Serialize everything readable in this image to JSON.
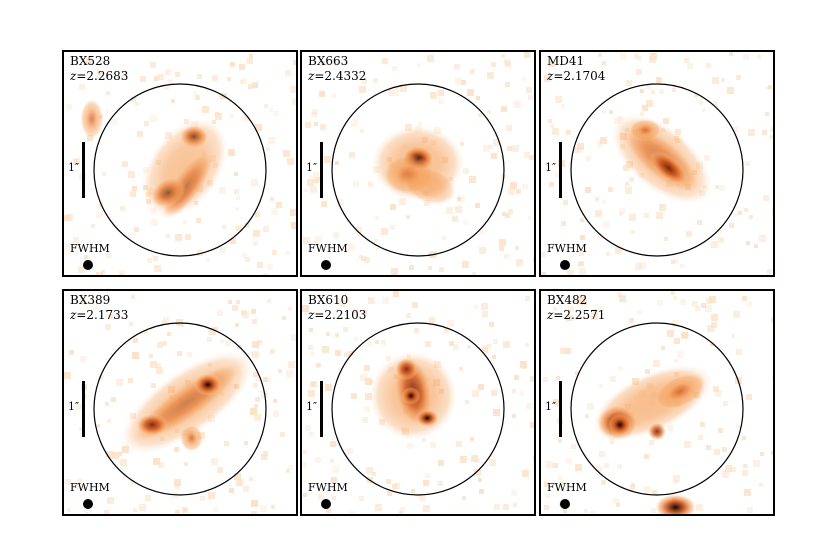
{
  "panels": [
    {
      "name": "BX528",
      "z_label": "z",
      "z_value": "=2.2683",
      "scale": "1″",
      "fwhm": "FWHM",
      "blobs": [
        [
          0.53,
          0.6,
          0.17,
          0.06,
          -55,
          0.75
        ],
        [
          0.45,
          0.63,
          0.08,
          0.06,
          -30,
          1.0
        ],
        [
          0.56,
          0.38,
          0.06,
          0.05,
          0,
          0.95
        ],
        [
          0.12,
          0.3,
          0.05,
          0.09,
          0,
          0.45
        ],
        [
          0.52,
          0.52,
          0.24,
          0.16,
          -55,
          0.25
        ]
      ]
    },
    {
      "name": "BX663",
      "z_label": "z",
      "z_value": "=2.4332",
      "scale": "1″",
      "fwhm": "FWHM",
      "blobs": [
        [
          0.5,
          0.5,
          0.2,
          0.17,
          0,
          0.35
        ],
        [
          0.5,
          0.48,
          0.07,
          0.06,
          0,
          1.0
        ],
        [
          0.46,
          0.55,
          0.11,
          0.09,
          0,
          0.55
        ],
        [
          0.55,
          0.6,
          0.12,
          0.08,
          20,
          0.3
        ]
      ]
    },
    {
      "name": "MD41",
      "z_label": "z",
      "z_value": "=2.1704",
      "scale": "1″",
      "fwhm": "FWHM",
      "blobs": [
        [
          0.52,
          0.48,
          0.2,
          0.08,
          40,
          0.65
        ],
        [
          0.52,
          0.48,
          0.26,
          0.14,
          40,
          0.25
        ],
        [
          0.55,
          0.52,
          0.1,
          0.05,
          40,
          0.85
        ],
        [
          0.45,
          0.35,
          0.07,
          0.05,
          0,
          0.55
        ]
      ]
    },
    {
      "name": "BX389",
      "z_label": "z",
      "z_value": "=2.1733",
      "scale": "1″",
      "fwhm": "FWHM",
      "blobs": [
        [
          0.53,
          0.5,
          0.28,
          0.07,
          -35,
          0.7
        ],
        [
          0.53,
          0.5,
          0.34,
          0.14,
          -35,
          0.25
        ],
        [
          0.62,
          0.42,
          0.06,
          0.05,
          0,
          0.95
        ],
        [
          0.38,
          0.6,
          0.07,
          0.05,
          0,
          0.75
        ],
        [
          0.55,
          0.66,
          0.05,
          0.06,
          0,
          0.55
        ]
      ]
    },
    {
      "name": "BX610",
      "z_label": "z",
      "z_value": "=2.2103",
      "scale": "1″",
      "fwhm": "FWHM",
      "blobs": [
        [
          0.48,
          0.47,
          0.19,
          0.2,
          0,
          0.35
        ],
        [
          0.48,
          0.45,
          0.08,
          0.16,
          -10,
          0.7
        ],
        [
          0.47,
          0.47,
          0.04,
          0.04,
          0,
          1.0
        ],
        [
          0.54,
          0.57,
          0.05,
          0.04,
          0,
          0.95
        ],
        [
          0.45,
          0.35,
          0.05,
          0.05,
          0,
          0.7
        ]
      ]
    },
    {
      "name": "BX482",
      "z_label": "z",
      "z_value": "=2.2571",
      "scale": "1″",
      "fwhm": "FWHM",
      "blobs": [
        [
          0.48,
          0.5,
          0.28,
          0.13,
          -25,
          0.4
        ],
        [
          0.33,
          0.59,
          0.09,
          0.08,
          0,
          0.85
        ],
        [
          0.34,
          0.6,
          0.05,
          0.05,
          0,
          1.0
        ],
        [
          0.5,
          0.63,
          0.04,
          0.04,
          0,
          0.7
        ],
        [
          0.6,
          0.45,
          0.12,
          0.07,
          -25,
          0.55
        ],
        [
          0.58,
          0.97,
          0.09,
          0.06,
          0,
          0.95
        ]
      ]
    }
  ],
  "colors": {
    "colormap": [
      "#ffffff",
      "#fbe0c4",
      "#f5a35f",
      "#d0561a",
      "#6e1d05",
      "#150000"
    ]
  }
}
